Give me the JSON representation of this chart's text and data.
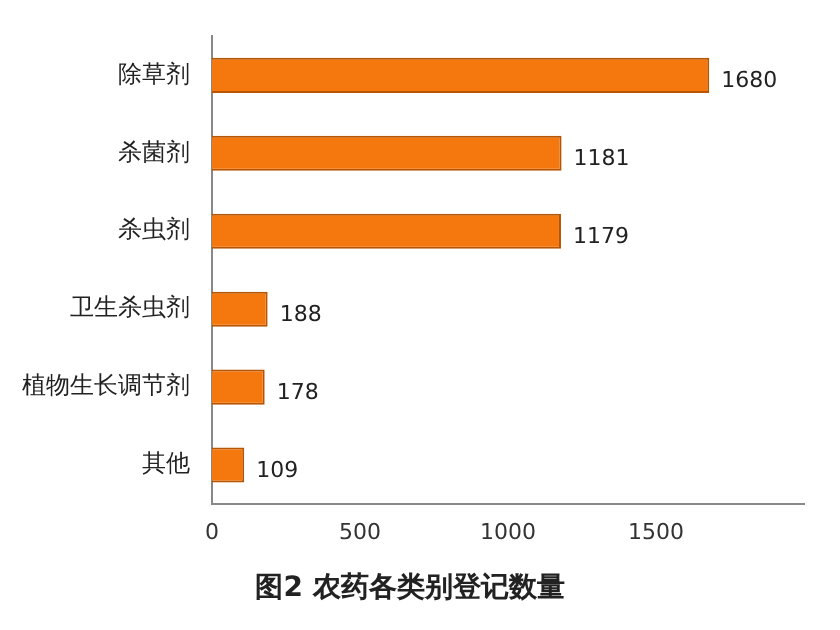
{
  "chart_data": {
    "type": "bar",
    "orientation": "horizontal",
    "title": "图2 农药各类别登记数量",
    "categories": [
      "除草剂",
      "杀菌剂",
      "杀虫剂",
      "卫生杀虫剂",
      "植物生长调节剂",
      "其他"
    ],
    "values": [
      1680,
      1181,
      1179,
      188,
      178,
      109
    ],
    "color": "#f5780f",
    "xlim": [
      0,
      2000
    ],
    "xticks": [
      0,
      500,
      1000,
      1500
    ],
    "grid": false,
    "data_labels": true
  }
}
